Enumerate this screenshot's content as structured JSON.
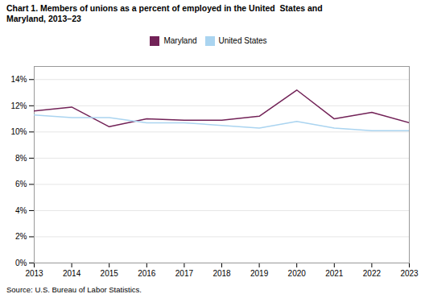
{
  "chart_data": {
    "type": "line",
    "title": "Chart 1. Members of unions as a percent of employed in the United  States and\nMaryland, 2013–23",
    "x": [
      2013,
      2014,
      2015,
      2016,
      2017,
      2018,
      2019,
      2020,
      2021,
      2022,
      2023
    ],
    "series": [
      {
        "name": "Maryland",
        "color": "#722257",
        "values": [
          11.6,
          11.9,
          10.4,
          11.0,
          10.9,
          10.9,
          11.2,
          13.2,
          11.0,
          11.5,
          10.7
        ]
      },
      {
        "name": "United States",
        "color": "#aad4f0",
        "values": [
          11.3,
          11.1,
          11.1,
          10.7,
          10.7,
          10.5,
          10.3,
          10.8,
          10.3,
          10.1,
          10.1
        ]
      }
    ],
    "xlim": [
      2013,
      2023
    ],
    "xticks": [
      2013,
      2014,
      2015,
      2016,
      2017,
      2018,
      2019,
      2020,
      2021,
      2022,
      2023
    ],
    "ylim": [
      0,
      15
    ],
    "yticks": [
      {
        "value": 0,
        "label": "0%"
      },
      {
        "value": 2,
        "label": "2%"
      },
      {
        "value": 4,
        "label": "4%"
      },
      {
        "value": 6,
        "label": "6%"
      },
      {
        "value": 8,
        "label": "8%"
      },
      {
        "value": 10,
        "label": "10%"
      },
      {
        "value": 12,
        "label": "12%"
      },
      {
        "value": 14,
        "label": "14%"
      }
    ],
    "grid": true,
    "legend": "top",
    "source": "Source: U.S. Bureau of Labor Statistics."
  }
}
